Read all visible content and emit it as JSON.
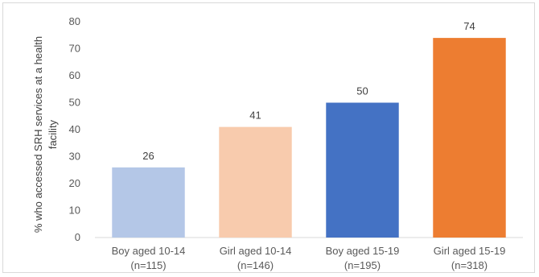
{
  "chart_data": {
    "type": "bar",
    "title": "",
    "xlabel": "",
    "ylabel": [
      "% who accessed SRH services at a health",
      "facility"
    ],
    "ylim": [
      0,
      80
    ],
    "yticks": [
      0,
      10,
      20,
      30,
      40,
      50,
      60,
      70,
      80
    ],
    "grid": false,
    "legend": "none",
    "categories": [
      [
        "Boy aged 10-14",
        "(n=115)"
      ],
      [
        "Girl aged 10-14",
        "(n=146)"
      ],
      [
        "Boy aged 15-19",
        "(n=195)"
      ],
      [
        "Girl aged 15-19",
        "(n=318)"
      ]
    ],
    "values": [
      26,
      41,
      50,
      74
    ],
    "colors": [
      "#b4c7e7",
      "#f8cbad",
      "#4472c4",
      "#ed7d31"
    ]
  }
}
